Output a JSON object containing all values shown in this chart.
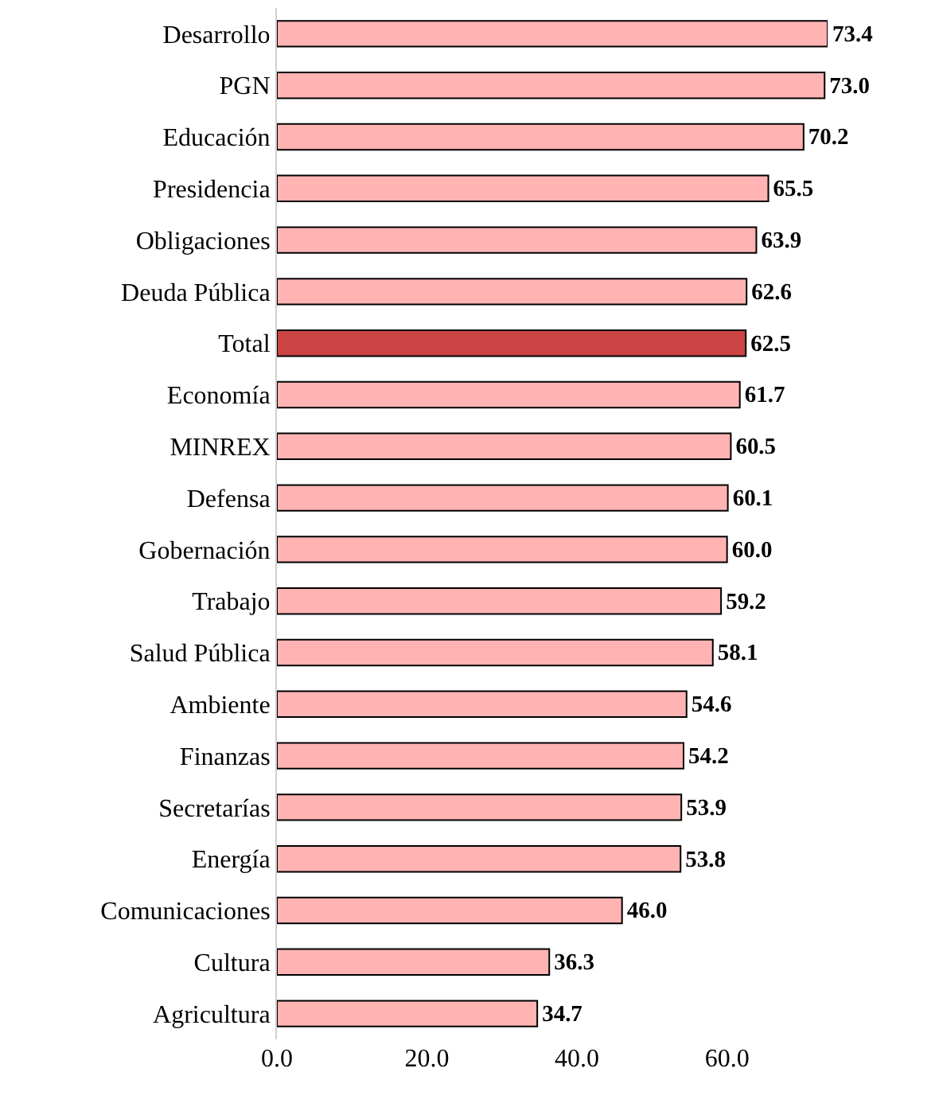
{
  "chart_data": {
    "type": "bar",
    "orientation": "horizontal",
    "categories": [
      "Desarrollo",
      "PGN",
      "Educación",
      "Presidencia",
      "Obligaciones",
      "Deuda Pública",
      "Total",
      "Economía",
      "MINREX",
      "Defensa",
      "Gobernación",
      "Trabajo",
      "Salud Pública",
      "Ambiente",
      "Finanzas",
      "Secretarías",
      "Energía",
      "Comunicaciones",
      "Cultura",
      "Agricultura"
    ],
    "values": [
      73.4,
      73.0,
      70.2,
      65.5,
      63.9,
      62.6,
      62.5,
      61.7,
      60.5,
      60.1,
      60.0,
      59.2,
      58.1,
      54.6,
      54.2,
      53.9,
      53.8,
      46.0,
      36.3,
      34.7
    ],
    "value_labels": [
      "73.4",
      "73.0",
      "70.2",
      "65.5",
      "63.9",
      "62.6",
      "62.5",
      "61.7",
      "60.5",
      "60.1",
      "60.0",
      "59.2",
      "58.1",
      "54.6",
      "54.2",
      "53.9",
      "53.8",
      "46.0",
      "36.3",
      "34.7"
    ],
    "colors": [
      "#ffb3b3",
      "#ffb3b3",
      "#ffb3b3",
      "#ffb3b3",
      "#ffb3b3",
      "#ffb3b3",
      "#cc4444",
      "#ffb3b3",
      "#ffb3b3",
      "#ffb3b3",
      "#ffb3b3",
      "#ffb3b3",
      "#ffb3b3",
      "#ffb3b3",
      "#ffb3b3",
      "#ffb3b3",
      "#ffb3b3",
      "#ffb3b3",
      "#ffb3b3",
      "#ffb3b3"
    ],
    "xlim": [
      0,
      73.4
    ],
    "xticks": [
      {
        "value": 0,
        "label": "0.0"
      },
      {
        "value": 20,
        "label": "20.0"
      },
      {
        "value": 40,
        "label": "40.0"
      },
      {
        "value": 60,
        "label": "60.0"
      }
    ],
    "grid": false
  }
}
